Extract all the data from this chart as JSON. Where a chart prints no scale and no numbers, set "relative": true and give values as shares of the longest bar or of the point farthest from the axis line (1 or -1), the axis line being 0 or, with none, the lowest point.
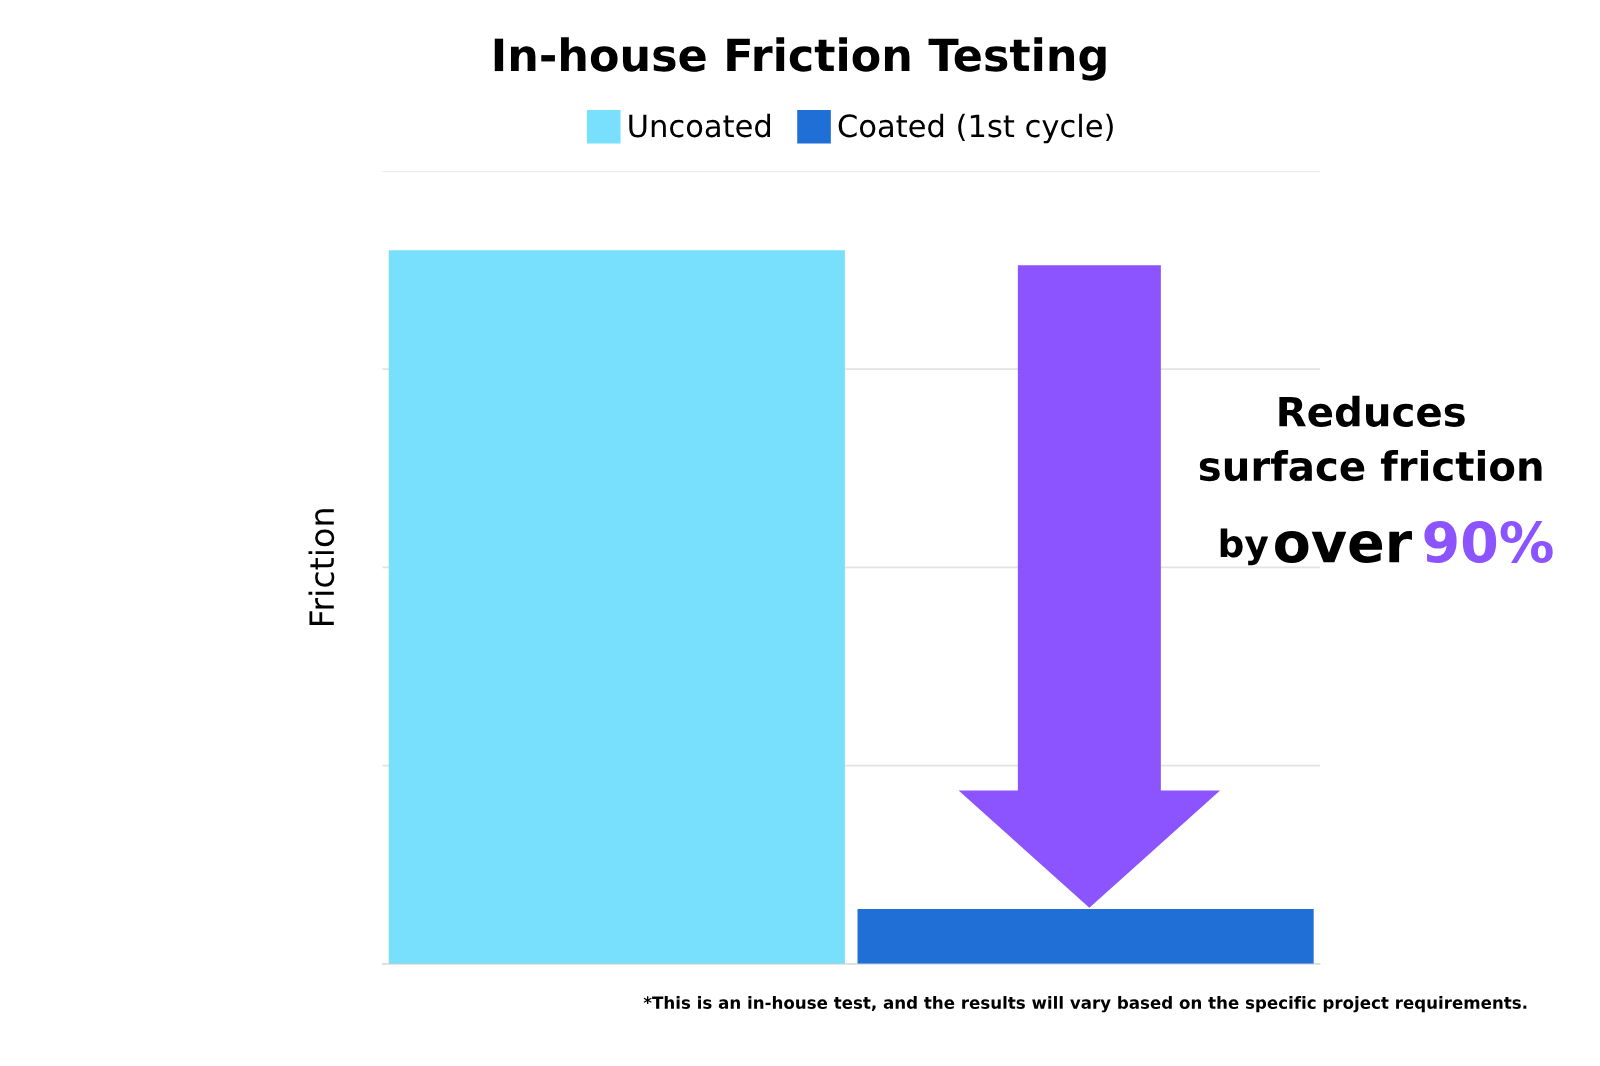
{
  "chart_data": {
    "type": "bar",
    "title": "In-house Friction Testing",
    "ylabel": "Friction",
    "relative": true,
    "categories": [
      null
    ],
    "series": [
      {
        "name": "Uncoated",
        "color": "#78dffd",
        "values": [
          1
        ]
      },
      {
        "name": "Coated (1st cycle)",
        "color": "#1f6fd6",
        "values": [
          0.077
        ]
      }
    ],
    "grid": "y",
    "legend": "top",
    "annotations": [
      "Reduces\nsurface friction",
      "by",
      "over",
      "90%",
      "*This is an in-house test, and the results will vary based on the specific project requirements."
    ]
  }
}
